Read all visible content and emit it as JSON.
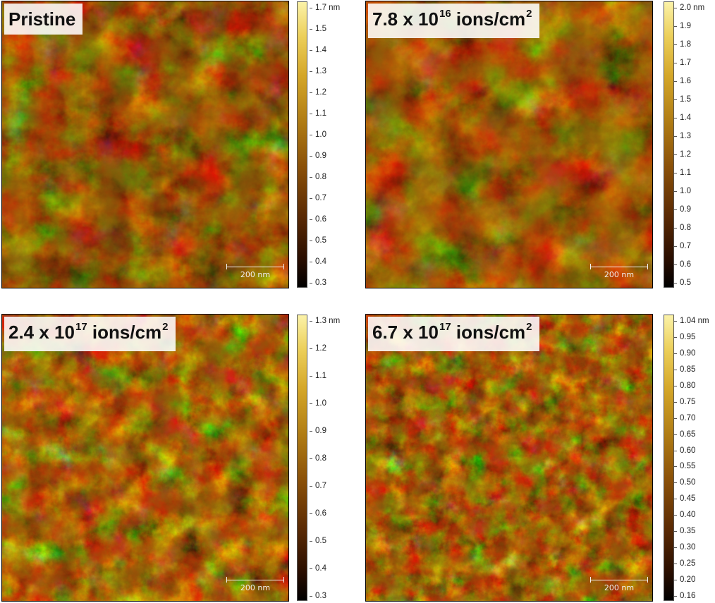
{
  "panels": [
    {
      "label_main": "Pristine",
      "label_sup": "",
      "label_tail": "",
      "scale_bar": "200 nm",
      "colorbar": [
        "1.7 nm",
        "1.5",
        "1.4",
        "1.3",
        "1.2",
        "1.1",
        "1.0",
        "0.9",
        "0.8",
        "0.7",
        "0.6",
        "0.5",
        "0.4",
        "0.3"
      ]
    },
    {
      "label_main": "7.8 x 10",
      "label_sup": "16",
      "label_tail": " ions/cm",
      "label_sup2": "2",
      "scale_bar": "200 nm",
      "colorbar": [
        "2.0 nm",
        "1.9",
        "1.8",
        "1.7",
        "1.6",
        "1.5",
        "1.4",
        "1.3",
        "1.2",
        "1.1",
        "1.0",
        "0.9",
        "0.8",
        "0.7",
        "0.6",
        "0.5"
      ]
    },
    {
      "label_main": "2.4 x 10",
      "label_sup": "17",
      "label_tail": " ions/cm",
      "label_sup2": "2",
      "scale_bar": "200 nm",
      "colorbar": [
        "1.3 nm",
        "1.2",
        "1.1",
        "1.0",
        "0.9",
        "0.8",
        "0.7",
        "0.6",
        "0.5",
        "0.4",
        "0.3"
      ]
    },
    {
      "label_main": "6.7 x 10",
      "label_sup": "17",
      "label_tail": " ions/cm",
      "label_sup2": "2",
      "scale_bar": "200 nm",
      "colorbar": [
        "1.04 nm",
        "0.95",
        "0.90",
        "0.85",
        "0.80",
        "0.75",
        "0.70",
        "0.65",
        "0.60",
        "0.55",
        "0.50",
        "0.45",
        "0.40",
        "0.35",
        "0.30",
        "0.25",
        "0.20",
        "0.16"
      ]
    }
  ]
}
